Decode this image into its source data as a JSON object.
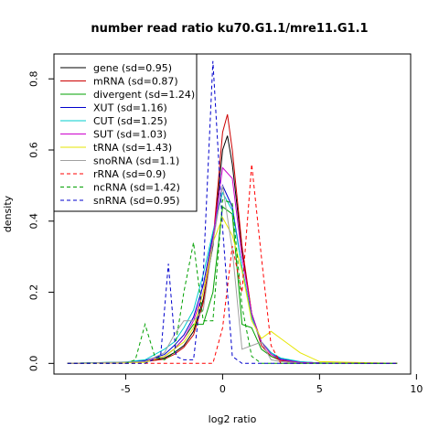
{
  "chart_data": {
    "type": "line",
    "title": "number read ratio ku70.G1.1/mre11.G1.1",
    "xlabel": "log2 ratio",
    "ylabel": "density",
    "xlim": [
      -8.7,
      9.7
    ],
    "ylim": [
      -0.03,
      0.87
    ],
    "xticks": [
      -5,
      0,
      5,
      10
    ],
    "yticks": [
      0.0,
      0.2,
      0.4,
      0.6,
      0.8
    ],
    "xtick_labels": [
      "-5",
      "0",
      "5",
      "10"
    ],
    "ytick_labels": [
      "0.0",
      "0.2",
      "0.4",
      "0.6",
      "0.8"
    ],
    "grid": false,
    "legend_position": "top-left",
    "series": [
      {
        "name": "gene (sd=0.95)",
        "color": "#000000",
        "dash": "solid",
        "x": [
          -8,
          -5,
          -4,
          -3,
          -2.5,
          -2,
          -1.5,
          -1,
          -0.5,
          0,
          0.25,
          0.5,
          1,
          1.5,
          2,
          2.5,
          3,
          4,
          5,
          9
        ],
        "y": [
          0,
          0.002,
          0.005,
          0.015,
          0.03,
          0.05,
          0.09,
          0.18,
          0.33,
          0.6,
          0.64,
          0.56,
          0.32,
          0.14,
          0.06,
          0.03,
          0.012,
          0.004,
          0.001,
          0
        ]
      },
      {
        "name": "mRNA (sd=0.87)",
        "color": "#cc0000",
        "dash": "solid",
        "x": [
          -8,
          -5,
          -4,
          -3,
          -2.5,
          -2,
          -1.5,
          -1,
          -0.5,
          0,
          0.25,
          0.5,
          1,
          1.5,
          2,
          2.5,
          3,
          4,
          5,
          9
        ],
        "y": [
          0,
          0.002,
          0.005,
          0.012,
          0.025,
          0.045,
          0.08,
          0.17,
          0.34,
          0.65,
          0.7,
          0.6,
          0.33,
          0.14,
          0.05,
          0.02,
          0.008,
          0.003,
          0.001,
          0
        ]
      },
      {
        "name": "divergent (sd=1.24)",
        "color": "#00a000",
        "dash": "solid",
        "x": [
          -8,
          -4,
          -3,
          -2.5,
          -2,
          -1.5,
          -1,
          -0.5,
          0,
          0.5,
          1,
          1.5,
          2,
          2.5,
          3,
          4,
          9
        ],
        "y": [
          0,
          0.005,
          0.02,
          0.04,
          0.07,
          0.11,
          0.11,
          0.2,
          0.44,
          0.42,
          0.11,
          0.1,
          0.04,
          0.02,
          0.01,
          0.002,
          0
        ]
      },
      {
        "name": "XUT (sd=1.16)",
        "color": "#0000cc",
        "dash": "solid",
        "x": [
          -8,
          -5,
          -4,
          -3,
          -2.5,
          -2,
          -1.5,
          -1,
          -0.5,
          0,
          0.5,
          1,
          1.5,
          2,
          2.5,
          3,
          4,
          5,
          9
        ],
        "y": [
          0,
          0.003,
          0.008,
          0.025,
          0.05,
          0.08,
          0.13,
          0.22,
          0.36,
          0.5,
          0.44,
          0.27,
          0.13,
          0.06,
          0.03,
          0.012,
          0.004,
          0.001,
          0
        ]
      },
      {
        "name": "CUT (sd=1.25)",
        "color": "#00cccc",
        "dash": "solid",
        "x": [
          -8,
          -5,
          -4,
          -3,
          -2.5,
          -2,
          -1.5,
          -1,
          -0.5,
          0,
          0.5,
          1,
          1.5,
          2,
          2.5,
          3,
          4,
          5,
          9
        ],
        "y": [
          0,
          0.004,
          0.01,
          0.04,
          0.06,
          0.1,
          0.15,
          0.25,
          0.37,
          0.48,
          0.43,
          0.27,
          0.13,
          0.06,
          0.03,
          0.015,
          0.005,
          0.001,
          0
        ]
      },
      {
        "name": "SUT (sd=1.03)",
        "color": "#cc00cc",
        "dash": "solid",
        "x": [
          -8,
          -5,
          -4,
          -3,
          -2.5,
          -2,
          -1.5,
          -1,
          -0.5,
          0,
          0.5,
          1,
          1.5,
          2,
          2.5,
          3,
          4,
          5,
          9
        ],
        "y": [
          0,
          0.002,
          0.006,
          0.02,
          0.04,
          0.07,
          0.12,
          0.2,
          0.35,
          0.55,
          0.52,
          0.3,
          0.14,
          0.06,
          0.025,
          0.01,
          0.003,
          0.001,
          0
        ]
      },
      {
        "name": "tRNA (sd=1.43)",
        "color": "#e6e600",
        "dash": "solid",
        "x": [
          -8,
          -4,
          -3,
          -2,
          -1.5,
          -1,
          -0.5,
          0,
          0.5,
          1,
          1.5,
          2,
          2.5,
          3,
          3.5,
          4,
          5,
          9
        ],
        "y": [
          0,
          0.003,
          0.02,
          0.06,
          0.1,
          0.2,
          0.34,
          0.41,
          0.36,
          0.26,
          0.12,
          0.07,
          0.09,
          0.07,
          0.05,
          0.03,
          0.005,
          0
        ]
      },
      {
        "name": "snoRNA (sd=1.1)",
        "color": "#a0a0a0",
        "dash": "solid",
        "x": [
          -8,
          -4,
          -3,
          -2.5,
          -2,
          -1.5,
          -1,
          -0.5,
          0,
          0.5,
          1,
          1.5,
          2,
          2.5,
          3,
          4,
          9
        ],
        "y": [
          0,
          0.005,
          0.03,
          0.08,
          0.12,
          0.12,
          0.15,
          0.34,
          0.5,
          0.32,
          0.04,
          0.05,
          0.06,
          0.01,
          0.005,
          0.001,
          0
        ]
      },
      {
        "name": "rRNA (sd=0.9)",
        "color": "#ff0000",
        "dash": "dashed",
        "x": [
          -8,
          -3,
          -1,
          -0.5,
          0,
          0.5,
          1,
          1.5,
          2,
          2.5,
          3,
          9
        ],
        "y": [
          0,
          0,
          0,
          0,
          0.1,
          0.33,
          0.2,
          0.56,
          0.3,
          0.05,
          0,
          0
        ]
      },
      {
        "name": "ncRNA (sd=1.42)",
        "color": "#00a000",
        "dash": "dashed",
        "x": [
          -8,
          -5,
          -4.5,
          -4,
          -3.5,
          -3,
          -2.5,
          -2,
          -1.5,
          -1,
          -0.5,
          0,
          0.5,
          1,
          1.5,
          2,
          2.5,
          9
        ],
        "y": [
          0,
          0,
          0.01,
          0.11,
          0.02,
          0.01,
          0.03,
          0.2,
          0.34,
          0.12,
          0.12,
          0.46,
          0.45,
          0.16,
          0.02,
          0,
          0,
          0
        ]
      },
      {
        "name": "snRNA (sd=0.95)",
        "color": "#0000cc",
        "dash": "dashed",
        "x": [
          -8,
          -4,
          -3.2,
          -2.8,
          -2.4,
          -2,
          -1.5,
          -1,
          -0.5,
          0,
          0.5,
          1,
          1.5,
          2,
          9
        ],
        "y": [
          0,
          0,
          0.02,
          0.28,
          0.02,
          0.01,
          0.01,
          0.25,
          0.85,
          0.38,
          0.02,
          0,
          0,
          0,
          0
        ]
      }
    ]
  }
}
